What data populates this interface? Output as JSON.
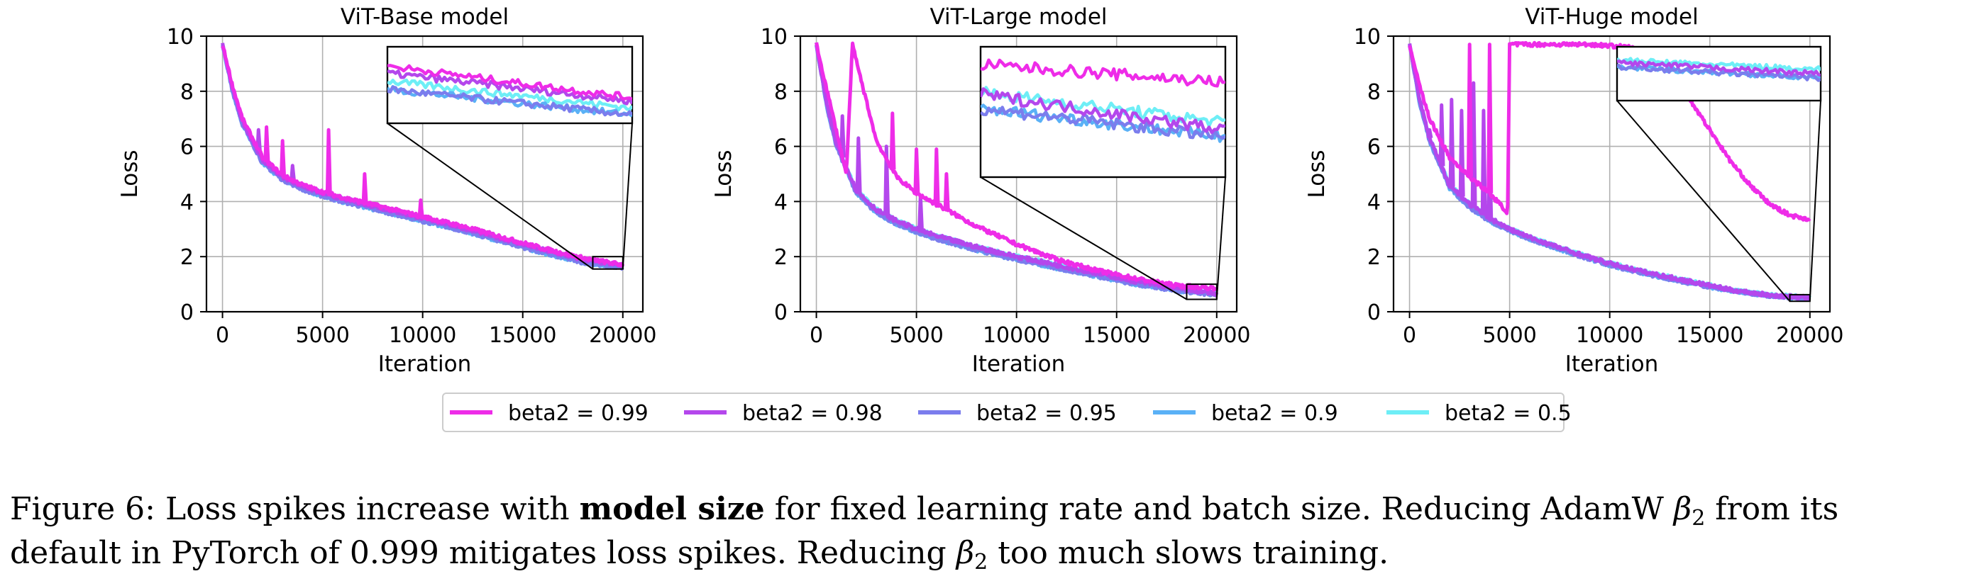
{
  "colors": {
    "beta2 = 0.99": "#ee2ce8",
    "beta2 = 0.98": "#b447ec",
    "beta2 = 0.95": "#7b7ded",
    "beta2 = 0.9": "#5ab1f6",
    "beta2 = 0.5": "#6eeef6"
  },
  "legend": [
    "beta2 = 0.99",
    "beta2 = 0.98",
    "beta2 = 0.95",
    "beta2 = 0.9",
    "beta2 = 0.5"
  ],
  "chart_data": [
    {
      "type": "line",
      "title": "ViT-Base model",
      "xlabel": "Iteration",
      "ylabel": "Loss",
      "xlim": [
        -800,
        21000
      ],
      "ylim": [
        0,
        10
      ],
      "xticks": [
        0,
        5000,
        10000,
        15000,
        20000
      ],
      "yticks": [
        0,
        2,
        4,
        6,
        8,
        10
      ],
      "grid": true,
      "inset": "zoom of iterations 18500-20000, loss 1.6-2.0, placed top-right",
      "series": [
        {
          "name": "beta2 = 0.99",
          "x": [
            0,
            500,
            1000,
            2000,
            3000,
            4000,
            5000,
            6000,
            8000,
            10000,
            12000,
            14000,
            16000,
            18000,
            20000
          ],
          "y": [
            9.7,
            8.2,
            7.0,
            5.6,
            4.95,
            4.6,
            4.35,
            4.15,
            3.8,
            3.45,
            3.1,
            2.7,
            2.3,
            1.95,
            1.7
          ],
          "spikes": [
            [
              2200,
              6.7
            ],
            [
              3000,
              6.2
            ],
            [
              5300,
              6.6
            ],
            [
              7100,
              5.0
            ],
            [
              9900,
              4.05
            ]
          ]
        },
        {
          "name": "beta2 = 0.98",
          "x": [
            0,
            500,
            1000,
            2000,
            3000,
            4000,
            5000,
            6000,
            8000,
            10000,
            12000,
            14000,
            16000,
            18000,
            20000
          ],
          "y": [
            9.7,
            8.1,
            6.9,
            5.5,
            4.9,
            4.55,
            4.3,
            4.1,
            3.75,
            3.4,
            3.05,
            2.65,
            2.25,
            1.9,
            1.68
          ],
          "spikes": [
            [
              1800,
              6.6
            ],
            [
              3500,
              5.3
            ]
          ]
        },
        {
          "name": "beta2 = 0.95",
          "x": [
            0,
            500,
            1000,
            2000,
            3000,
            4000,
            5000,
            6000,
            8000,
            10000,
            12000,
            14000,
            16000,
            18000,
            20000
          ],
          "y": [
            9.7,
            8.0,
            6.8,
            5.4,
            4.8,
            4.45,
            4.2,
            4.0,
            3.65,
            3.3,
            2.95,
            2.55,
            2.15,
            1.8,
            1.6
          ]
        },
        {
          "name": "beta2 = 0.9",
          "x": [
            0,
            500,
            1000,
            2000,
            3000,
            4000,
            5000,
            6000,
            8000,
            10000,
            12000,
            14000,
            16000,
            18000,
            20000
          ],
          "y": [
            9.7,
            8.0,
            6.8,
            5.4,
            4.8,
            4.45,
            4.2,
            4.0,
            3.65,
            3.3,
            2.95,
            2.55,
            2.15,
            1.8,
            1.6
          ]
        },
        {
          "name": "beta2 = 0.5",
          "x": [
            0,
            500,
            1000,
            2000,
            3000,
            4000,
            5000,
            6000,
            8000,
            10000,
            12000,
            14000,
            16000,
            18000,
            20000
          ],
          "y": [
            9.7,
            8.0,
            6.8,
            5.45,
            4.85,
            4.5,
            4.25,
            4.05,
            3.7,
            3.35,
            3.0,
            2.6,
            2.2,
            1.85,
            1.64
          ]
        }
      ]
    },
    {
      "type": "line",
      "title": "ViT-Large model",
      "xlabel": "Iteration",
      "ylabel": "Loss",
      "xlim": [
        -800,
        21000
      ],
      "ylim": [
        0,
        10
      ],
      "xticks": [
        0,
        5000,
        10000,
        15000,
        20000
      ],
      "yticks": [
        0,
        2,
        4,
        6,
        8,
        10
      ],
      "grid": true,
      "inset": "zoom of iterations 18500-20000, loss 0.45-1.0, placed top-right",
      "series": [
        {
          "name": "beta2 = 0.99",
          "x": [
            0,
            1500,
            1800,
            2200,
            3000,
            4000,
            5000,
            6000,
            8000,
            10000,
            12000,
            14000,
            16000,
            18000,
            20000
          ],
          "y": [
            9.7,
            5.0,
            9.7,
            8.5,
            6.2,
            4.9,
            4.3,
            3.9,
            3.1,
            2.45,
            1.9,
            1.5,
            1.2,
            0.95,
            0.85
          ],
          "spikes": [
            [
              3800,
              7.2
            ],
            [
              5000,
              5.9
            ],
            [
              6000,
              5.9
            ],
            [
              6500,
              5.0
            ]
          ]
        },
        {
          "name": "beta2 = 0.98",
          "x": [
            0,
            500,
            1000,
            2000,
            3000,
            4000,
            5000,
            6000,
            8000,
            10000,
            12000,
            14000,
            16000,
            18000,
            20000
          ],
          "y": [
            9.7,
            7.6,
            6.1,
            4.4,
            3.7,
            3.3,
            3.0,
            2.75,
            2.35,
            2.0,
            1.7,
            1.4,
            1.1,
            0.85,
            0.65
          ],
          "spikes": [
            [
              1300,
              7.1
            ],
            [
              2100,
              6.3
            ],
            [
              3500,
              6.0
            ],
            [
              5200,
              4.2
            ]
          ]
        },
        {
          "name": "beta2 = 0.95",
          "x": [
            0,
            500,
            1000,
            2000,
            3000,
            4000,
            5000,
            6000,
            8000,
            10000,
            12000,
            14000,
            16000,
            18000,
            20000
          ],
          "y": [
            9.7,
            7.5,
            6.0,
            4.3,
            3.6,
            3.2,
            2.9,
            2.65,
            2.25,
            1.9,
            1.6,
            1.3,
            1.0,
            0.78,
            0.62
          ]
        },
        {
          "name": "beta2 = 0.9",
          "x": [
            0,
            500,
            1000,
            2000,
            3000,
            4000,
            5000,
            6000,
            8000,
            10000,
            12000,
            14000,
            16000,
            18000,
            20000
          ],
          "y": [
            9.7,
            7.5,
            6.0,
            4.3,
            3.6,
            3.2,
            2.9,
            2.65,
            2.25,
            1.9,
            1.6,
            1.3,
            1.0,
            0.78,
            0.62
          ]
        },
        {
          "name": "beta2 = 0.5",
          "x": [
            0,
            500,
            1000,
            2000,
            3000,
            4000,
            5000,
            6000,
            8000,
            10000,
            12000,
            14000,
            16000,
            18000,
            20000
          ],
          "y": [
            9.7,
            7.6,
            6.1,
            4.4,
            3.7,
            3.3,
            3.0,
            2.75,
            2.35,
            2.0,
            1.7,
            1.4,
            1.1,
            0.85,
            0.68
          ]
        }
      ]
    },
    {
      "type": "line",
      "title": "ViT-Huge model",
      "xlabel": "Iteration",
      "ylabel": "Loss",
      "xlim": [
        -800,
        21000
      ],
      "ylim": [
        0,
        10
      ],
      "xticks": [
        0,
        5000,
        10000,
        15000,
        20000
      ],
      "yticks": [
        0,
        2,
        4,
        6,
        8,
        10
      ],
      "grid": true,
      "inset": "zoom of iterations 19000-20000, loss 0.4-0.6, placed top-right",
      "series": [
        {
          "name": "beta2 = 0.99",
          "x": [
            0,
            500,
            1000,
            2000,
            3000,
            4000,
            4900,
            5000,
            7000,
            9000,
            11000,
            12000,
            13000,
            14000,
            15000,
            16000,
            17000,
            18000,
            19000,
            20000
          ],
          "y": [
            9.7,
            8.2,
            7.0,
            5.6,
            4.9,
            4.3,
            3.6,
            9.7,
            9.7,
            9.7,
            9.6,
            9.3,
            8.6,
            7.7,
            6.6,
            5.5,
            4.6,
            3.9,
            3.5,
            3.35
          ],
          "spikes": [
            [
              3000,
              9.7
            ],
            [
              4000,
              9.7
            ]
          ]
        },
        {
          "name": "beta2 = 0.98",
          "x": [
            0,
            500,
            1000,
            2000,
            3000,
            4000,
            5000,
            6000,
            8000,
            10000,
            12000,
            14000,
            16000,
            18000,
            20000
          ],
          "y": [
            9.7,
            7.7,
            6.3,
            4.6,
            3.9,
            3.4,
            3.0,
            2.7,
            2.2,
            1.75,
            1.4,
            1.1,
            0.8,
            0.6,
            0.5
          ],
          "spikes": [
            [
              1000,
              6.6
            ],
            [
              1600,
              7.5
            ],
            [
              2100,
              7.7
            ],
            [
              2600,
              7.3
            ],
            [
              3200,
              8.3
            ],
            [
              3700,
              7.3
            ],
            [
              4000,
              6.0
            ]
          ]
        },
        {
          "name": "beta2 = 0.95",
          "x": [
            0,
            500,
            1000,
            2000,
            3000,
            4000,
            5000,
            6000,
            8000,
            10000,
            12000,
            14000,
            16000,
            18000,
            20000
          ],
          "y": [
            9.7,
            7.6,
            6.2,
            4.5,
            3.8,
            3.3,
            2.95,
            2.65,
            2.15,
            1.7,
            1.35,
            1.05,
            0.78,
            0.58,
            0.48
          ]
        },
        {
          "name": "beta2 = 0.9",
          "x": [
            0,
            500,
            1000,
            2000,
            3000,
            4000,
            5000,
            6000,
            8000,
            10000,
            12000,
            14000,
            16000,
            18000,
            20000
          ],
          "y": [
            9.7,
            7.6,
            6.2,
            4.5,
            3.8,
            3.3,
            2.95,
            2.65,
            2.15,
            1.7,
            1.35,
            1.05,
            0.78,
            0.58,
            0.48
          ]
        },
        {
          "name": "beta2 = 0.5",
          "x": [
            0,
            500,
            1000,
            2000,
            3000,
            4000,
            5000,
            6000,
            8000,
            10000,
            12000,
            14000,
            16000,
            18000,
            20000
          ],
          "y": [
            9.7,
            7.7,
            6.3,
            4.6,
            3.9,
            3.4,
            3.0,
            2.7,
            2.2,
            1.75,
            1.4,
            1.1,
            0.8,
            0.6,
            0.52
          ]
        }
      ]
    }
  ],
  "caption": {
    "label": "Figure 6: Loss spikes increase with ",
    "bold": "model size",
    "text1": " for fixed learning rate and batch size. Reducing AdamW ",
    "beta": "β",
    "sub": "2",
    "text2": " from its default in PyTorch of 0.999 mitigates loss spikes. Reducing ",
    "text3": " too much slows training."
  }
}
